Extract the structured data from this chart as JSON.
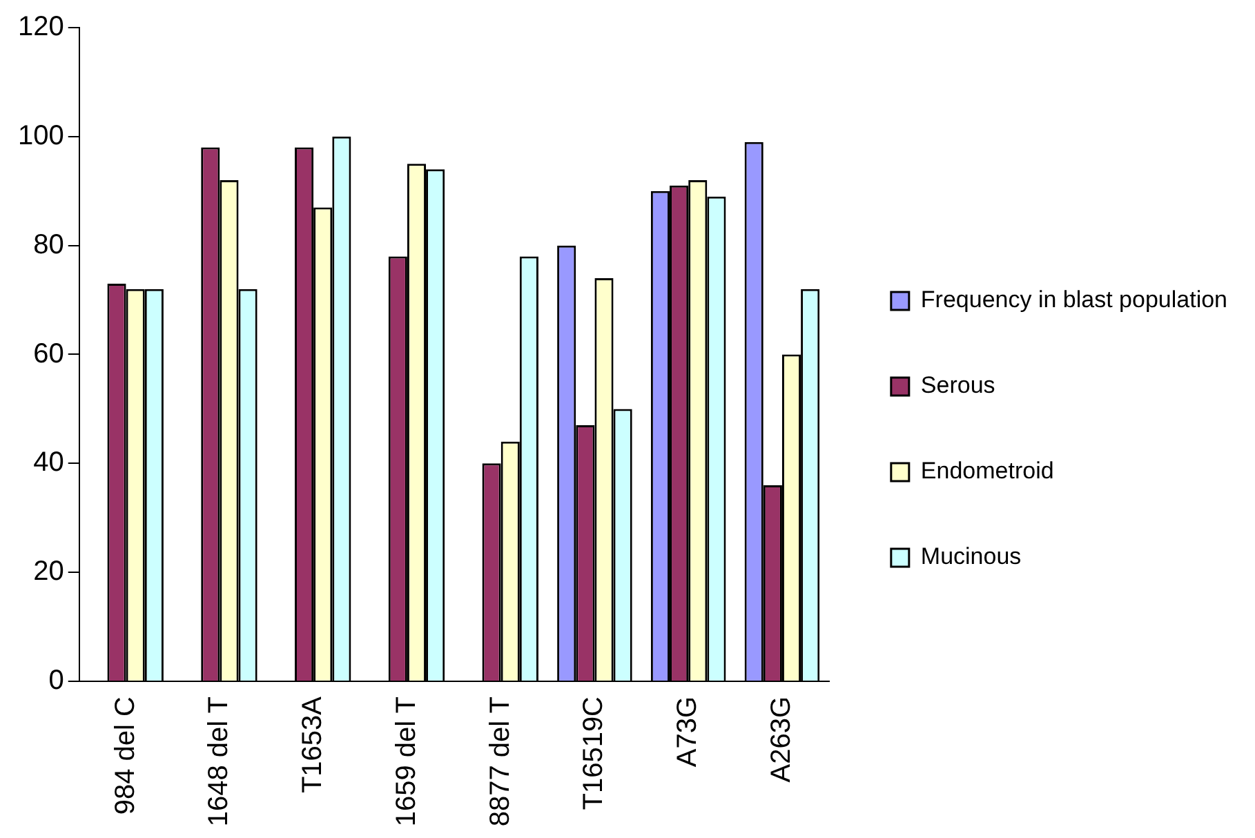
{
  "chart_data": {
    "type": "bar",
    "categories": [
      "984 del C",
      "1648 del T",
      "T1653A",
      "1659 del T",
      "8877 del T",
      "T16519C",
      "A73G",
      "A263G"
    ],
    "series": [
      {
        "name": "Frequency in blast population",
        "color": "#9999ff",
        "values": [
          null,
          null,
          null,
          null,
          null,
          80,
          90,
          99
        ]
      },
      {
        "name": "Serous",
        "color": "#993366",
        "values": [
          73,
          98,
          98,
          78,
          40,
          47,
          91,
          36
        ]
      },
      {
        "name": "Endometroid",
        "color": "#ffffcc",
        "values": [
          72,
          92,
          87,
          95,
          44,
          74,
          92,
          60
        ]
      },
      {
        "name": "Mucinous",
        "color": "#ccffff",
        "values": [
          72,
          72,
          100,
          94,
          78,
          50,
          89,
          72
        ]
      }
    ],
    "ylim": [
      0,
      120
    ],
    "yticks": [
      0,
      20,
      40,
      60,
      80,
      100,
      120
    ],
    "grid": false,
    "legend": "right"
  }
}
